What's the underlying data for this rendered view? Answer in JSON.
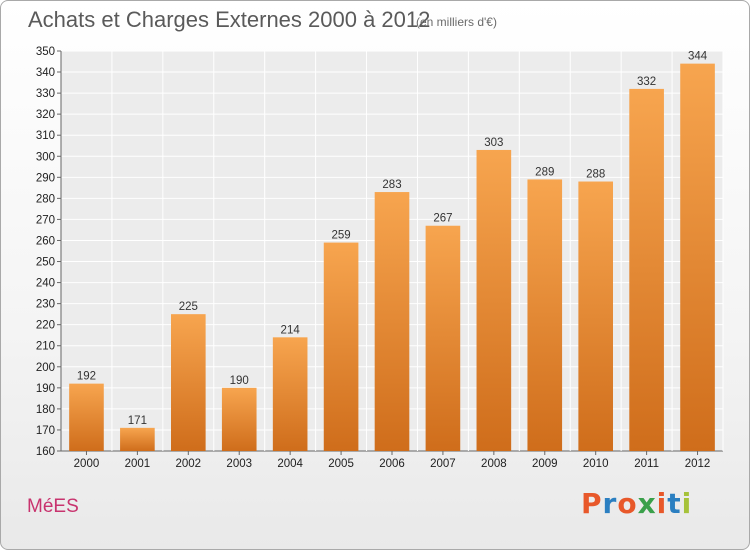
{
  "header": {
    "title": "Achats et Charges Externes 2000 à 2012",
    "subtitle": "(en milliers d'€)"
  },
  "footer": {
    "commune": "MéES",
    "logo_text": "Proxiti"
  },
  "colors": {
    "bar_light": "#f7a54f",
    "bar_dark": "#cf6d1b",
    "commune": "#c8336e",
    "logo_letters": [
      "#e8582a",
      "#2b7fc1",
      "#e8582a",
      "#3aa04a",
      "#e8582a",
      "#2b7fc1",
      "#a6c23a"
    ]
  },
  "chart_data": {
    "type": "bar",
    "categories": [
      "2000",
      "2001",
      "2002",
      "2003",
      "2004",
      "2005",
      "2006",
      "2007",
      "2008",
      "2009",
      "2010",
      "2011",
      "2012"
    ],
    "values": [
      192,
      171,
      225,
      190,
      214,
      259,
      283,
      267,
      303,
      289,
      288,
      332,
      344
    ],
    "title": "Achats et Charges Externes 2000 à 2012",
    "xlabel": "",
    "ylabel": "",
    "ylim": [
      160,
      350
    ],
    "yticks": [
      160,
      170,
      180,
      190,
      200,
      210,
      220,
      230,
      240,
      250,
      260,
      270,
      280,
      290,
      300,
      310,
      320,
      330,
      340,
      350
    ],
    "grid": true
  }
}
